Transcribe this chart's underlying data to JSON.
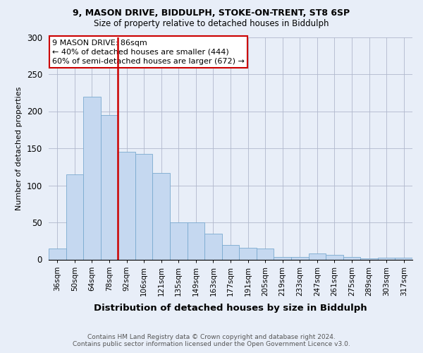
{
  "title_line1": "9, MASON DRIVE, BIDDULPH, STOKE-ON-TRENT, ST8 6SP",
  "title_line2": "Size of property relative to detached houses in Biddulph",
  "xlabel": "Distribution of detached houses by size in Biddulph",
  "ylabel": "Number of detached properties",
  "categories": [
    "36sqm",
    "50sqm",
    "64sqm",
    "78sqm",
    "92sqm",
    "106sqm",
    "121sqm",
    "135sqm",
    "149sqm",
    "163sqm",
    "177sqm",
    "191sqm",
    "205sqm",
    "219sqm",
    "233sqm",
    "247sqm",
    "261sqm",
    "275sqm",
    "289sqm",
    "303sqm",
    "317sqm"
  ],
  "values": [
    15,
    115,
    220,
    195,
    145,
    142,
    117,
    50,
    50,
    35,
    20,
    16,
    15,
    3,
    3,
    8,
    6,
    3,
    1,
    2,
    2
  ],
  "bar_color": "#c5d8f0",
  "bar_edge_color": "#7aaad0",
  "vline_color": "#cc0000",
  "vline_pos": 3.5,
  "annotation_text": "9 MASON DRIVE: 86sqm\n← 40% of detached houses are smaller (444)\n60% of semi-detached houses are larger (672) →",
  "annotation_box_color": "#ffffff",
  "annotation_box_edge": "#cc0000",
  "ylim": [
    0,
    300
  ],
  "yticks": [
    0,
    50,
    100,
    150,
    200,
    250,
    300
  ],
  "footer": "Contains HM Land Registry data © Crown copyright and database right 2024.\nContains public sector information licensed under the Open Government Licence v3.0.",
  "bg_color": "#e8eef8",
  "plot_bg_color": "#e8eef8",
  "title_fontsize": 9.0,
  "subtitle_fontsize": 8.5,
  "xlabel_fontsize": 9.5,
  "ylabel_fontsize": 8.0,
  "tick_fontsize": 7.5,
  "footer_fontsize": 6.5
}
